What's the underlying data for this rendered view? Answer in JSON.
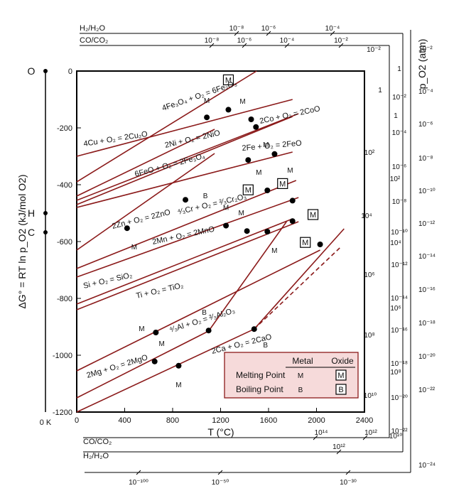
{
  "colors": {
    "line": "#8b1a1a",
    "legend_bg": "#f6dada",
    "legend_border": "#8b1a1a",
    "axis": "#000000"
  },
  "chart_data": {
    "type": "line",
    "title": "",
    "xlabel": "T (°C)",
    "ylabel": "ΔG° = RT ln p_O2 (kJ/mol O2)",
    "xlim": [
      0,
      2400
    ],
    "ylim": [
      -1200,
      0
    ],
    "xticks": [
      "0",
      "400",
      "800",
      "1200",
      "1600",
      "2000",
      "2400"
    ],
    "yticks": [
      "0",
      "-200",
      "-400",
      "-600",
      "-800",
      "-1000",
      "-1200"
    ],
    "grid": false,
    "series": [
      {
        "name": "4Cu + O2 = 2Cu2O",
        "x": [
          0,
          1800
        ],
        "y": [
          -300,
          -100
        ]
      },
      {
        "name": "4Fe3O4 + O2 = 6Fe2O3",
        "x": [
          0,
          1500
        ],
        "y": [
          -390,
          0
        ]
      },
      {
        "name": "2Ni + O2 = 2NiO",
        "x": [
          0,
          1800
        ],
        "y": [
          -470,
          -160
        ]
      },
      {
        "name": "2Co + O2 = 2CoO",
        "x": [
          0,
          1850
        ],
        "y": [
          -455,
          -150
        ]
      },
      {
        "name": "6FeO + O2 = 2Fe3O4",
        "x": [
          0,
          1150
        ],
        "y": [
          -440,
          -205
        ]
      },
      {
        "name": "2Fe + O2 = 2FeO",
        "x": [
          0,
          1800
        ],
        "y": [
          -480,
          -285
        ]
      },
      {
        "name": "2Zn + O2 = 2ZnO",
        "x": [
          0,
          1150
        ],
        "y": [
          -630,
          -290
        ]
      },
      {
        "name": "4/3Cr + O2 = 2/3Cr2O3",
        "x": [
          0,
          1830
        ],
        "y": [
          -695,
          -385
        ]
      },
      {
        "name": "2Mn + O2 = 2MnO",
        "x": [
          0,
          1850
        ],
        "y": [
          -725,
          -445
        ]
      },
      {
        "name": "Si + O2 = SiO2",
        "x": [
          0,
          1800
        ],
        "y": [
          -820,
          -520
        ]
      },
      {
        "name": "Ti + O2 = TiO2",
        "x": [
          0,
          1850
        ],
        "y": [
          -840,
          -530
        ]
      },
      {
        "name": "4/3Al + O2 = 2/3Al2O3",
        "x": [
          0,
          2030
        ],
        "y": [
          -1055,
          -630
        ]
      },
      {
        "name": "2Mg + O2 = 2MgO",
        "x": [
          0,
          1100,
          1750
        ],
        "y": [
          -1150,
          -915,
          -530
        ]
      },
      {
        "name": "2Ca + O2 = 2CaO",
        "x": [
          0,
          1480
        ],
        "y": [
          -1200,
          -908
        ]
      },
      {
        "name": "2Ca + O2 = 2CaO (extrapolated)",
        "x": [
          1480,
          2200
        ],
        "y": [
          -908,
          -620
        ],
        "dashed": true
      },
      {
        "name": "2Ca + O2 = 2CaO (oxide)",
        "x": [
          1480,
          2230
        ],
        "y": [
          -908,
          -555
        ]
      }
    ],
    "labels": [
      {
        "text": "4Cu + O₂ = 2Cu₂O",
        "x": 60,
        "y": -265,
        "angle": -9
      },
      {
        "text": "4Fe₃O₄ + O₂ = 6Fe₂O₃",
        "x": 720,
        "y": -140,
        "angle": -19
      },
      {
        "text": "2Ni + O₂ = 2NiO",
        "x": 740,
        "y": -270,
        "angle": -13
      },
      {
        "text": "6FeO + O₂ = 2Fe₃O₄",
        "x": 490,
        "y": -372,
        "angle": -15
      },
      {
        "text": "2Co + O₂ = 2CoO",
        "x": 1530,
        "y": -185,
        "angle": -12
      },
      {
        "text": "2Fe + O₂ = 2FeO",
        "x": 1380,
        "y": -280,
        "angle": -5
      },
      {
        "text": "2Zn + O₂ = 2ZnO",
        "x": 300,
        "y": -555,
        "angle": -14
      },
      {
        "text": "⁴⁄₃Cr + O₂ = ²⁄₃Cr₂O₃",
        "x": 845,
        "y": -505,
        "angle": -13
      },
      {
        "text": "2Mn + O₂ = 2MnO",
        "x": 635,
        "y": -610,
        "angle": -12
      },
      {
        "text": "Si + O₂ = SiO₂",
        "x": 60,
        "y": -765,
        "angle": -13
      },
      {
        "text": "Ti + O₂ = TiO₂",
        "x": 500,
        "y": -800,
        "angle": -13
      },
      {
        "text": "⁴⁄₃Al + O₂ = ²⁄₃Al₂O₃",
        "x": 780,
        "y": -920,
        "angle": -17
      },
      {
        "text": "2Mg + O₂ = 2MgO",
        "x": 90,
        "y": -1080,
        "angle": -17
      },
      {
        "text": "2Ca + O₂ = 2CaO",
        "x": 1130,
        "y": -995,
        "angle": -14
      }
    ],
    "points": [
      {
        "x": 1085,
        "y": -163,
        "type": "M",
        "label_dx": 0,
        "label_dy": -24
      },
      {
        "x": 1265,
        "y": -136,
        "type": "oxide-M",
        "label_dx": 0,
        "label_dy": -42
      },
      {
        "x": 1455,
        "y": -170,
        "type": "M",
        "label_dx": -12,
        "label_dy": -26
      },
      {
        "x": 1495,
        "y": -197,
        "type": "M",
        "label_dx": 14,
        "label_dy": 24
      },
      {
        "x": 1430,
        "y": -313,
        "type": "oxide-M",
        "label_dx": 0,
        "label_dy": 42
      },
      {
        "x": 1650,
        "y": -292,
        "type": "M",
        "label_dx": 22,
        "label_dy": 22
      },
      {
        "x": 420,
        "y": -553,
        "type": "M",
        "label_dx": 10,
        "label_dy": 26
      },
      {
        "x": 907,
        "y": -453,
        "type": "B",
        "label_dx": 28,
        "label_dy": -6
      },
      {
        "x": 1590,
        "y": -420,
        "type": "M",
        "label_dx": -12,
        "label_dy": -26
      },
      {
        "x": 1800,
        "y": -456,
        "type": "oxide-M",
        "label_dx": -14,
        "label_dy": -24
      },
      {
        "x": 1245,
        "y": -544,
        "type": "M",
        "label_dx": 0,
        "label_dy": -26
      },
      {
        "x": 1420,
        "y": -563,
        "type": "M",
        "label_dx": -8,
        "label_dy": -26
      },
      {
        "x": 1590,
        "y": -565,
        "type": "M",
        "label_dx": 10,
        "label_dy": 26
      },
      {
        "x": 1800,
        "y": -528,
        "type": "oxide-M",
        "label_dx": 18,
        "label_dy": 30
      },
      {
        "x": 2030,
        "y": -610,
        "type": "oxide-M",
        "label_dx": -10,
        "label_dy": -42
      },
      {
        "x": 660,
        "y": -920,
        "type": "M",
        "label_dx": -20,
        "label_dy": -6
      },
      {
        "x": 1100,
        "y": -913,
        "type": "B",
        "label_dx": -6,
        "label_dy": -26
      },
      {
        "x": 1480,
        "y": -908,
        "type": "B",
        "label_dx": 16,
        "label_dy": 22
      },
      {
        "x": 650,
        "y": -1022,
        "type": "M",
        "label_dx": 10,
        "label_dy": -26
      },
      {
        "x": 850,
        "y": -1037,
        "type": "M",
        "label_dx": 0,
        "label_dy": 26
      }
    ],
    "po2_scale": {
      "title": "p_O2 (atm)",
      "right_labels": [
        "10⁻²",
        "10⁻⁴",
        "10⁻⁶",
        "10⁻⁸",
        "10⁻¹⁰",
        "10⁻¹²",
        "10⁻¹⁴",
        "10⁻¹⁶",
        "10⁻¹⁸",
        "10⁻²⁰",
        "10⁻²²",
        "10⁻²⁴"
      ],
      "top_labels": [
        "10⁻²",
        "1"
      ],
      "inner_labels": [
        "1",
        "10⁻²",
        "10⁻⁴",
        "10⁻⁶",
        "10⁻⁸",
        "10⁻¹⁰",
        "10⁻¹²",
        "10⁻¹⁴",
        "10⁻¹⁶",
        "10⁻¹⁸",
        "10⁻²⁰",
        "10⁻²²"
      ],
      "bottom_labels": [
        "10⁻¹⁰⁰",
        "10⁻⁵⁰",
        "10⁻³⁰"
      ]
    },
    "co_scale": {
      "name": "CO/CO₂",
      "top_labels": [
        "10⁻⁸",
        "10⁻⁶",
        "10⁻⁴",
        "10⁻²"
      ],
      "right_labels": [
        "10⁻²",
        "1",
        "10²",
        "10⁴",
        "10⁶",
        "10⁸",
        "10¹⁰"
      ],
      "bottom_labels": [
        "10¹⁴",
        "10¹²"
      ]
    },
    "h2_scale": {
      "name": "H₂/H₂O",
      "top_labels": [
        "10⁻⁸",
        "10⁻⁶",
        "10⁻⁴"
      ],
      "right_labels": [
        "1",
        "10²",
        "10⁴",
        "10⁶",
        "10⁸",
        "10¹⁰"
      ],
      "bottom_labels": [
        "10¹⁴",
        "10¹²"
      ]
    },
    "left_scale": {
      "points": [
        "O",
        "H",
        "C"
      ],
      "zero_label": "0 K"
    },
    "legend": {
      "header_metal": "Metal",
      "header_oxide": "Oxide",
      "rows": [
        {
          "label": "Melting Point",
          "metal": "M",
          "oxide": "M"
        },
        {
          "label": "Boiling Point",
          "metal": "B",
          "oxide": "B"
        }
      ],
      "placement": "bottom-right"
    }
  }
}
